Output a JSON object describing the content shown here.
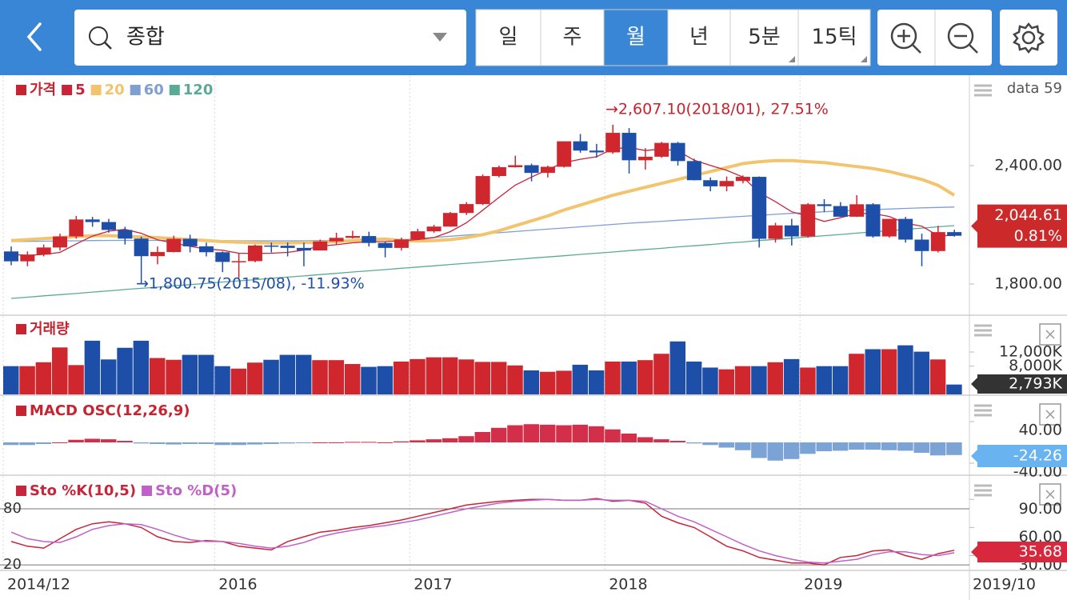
{
  "header": {
    "search": "종합",
    "periods": [
      "일",
      "주",
      "월",
      "년",
      "5분",
      "15틱"
    ],
    "selected_period": 2,
    "data_count": "data 59"
  },
  "chart_data": [
    {
      "type": "candlestick",
      "title": "가격",
      "title_color": "#c8242f",
      "categories": [
        "2014/12",
        null,
        null,
        null,
        null,
        null,
        null,
        null,
        null,
        null,
        null,
        null,
        null,
        "2016",
        null,
        null,
        null,
        null,
        null,
        null,
        null,
        null,
        null,
        null,
        null,
        "2017",
        null,
        null,
        null,
        null,
        null,
        null,
        null,
        null,
        null,
        null,
        null,
        "2018",
        null,
        null,
        null,
        null,
        null,
        null,
        null,
        null,
        null,
        null,
        null,
        "2019",
        null,
        null,
        null,
        null,
        null,
        null,
        null,
        null,
        "2019/10"
      ],
      "open": [
        1965,
        1915,
        1949,
        1985,
        2041,
        2127,
        2114,
        2074,
        2030,
        1941,
        1962,
        2029,
        1991,
        1961,
        1912,
        1916,
        1995,
        1994,
        1983,
        1970,
        2016,
        2034,
        2043,
        2008,
        1983,
        2026,
        2067,
        2091,
        2160,
        2205,
        2347,
        2392,
        2402,
        2363,
        2394,
        2523,
        2476,
        2467,
        2566,
        2427,
        2445,
        2515,
        2423,
        2326,
        2295,
        2322,
        2343,
        2029,
        2097,
        2041,
        2204,
        2195,
        2141,
        2204,
        2041,
        2130,
        2025,
        1967,
        2063
      ],
      "high": [
        1990,
        1965,
        2000,
        2055,
        2145,
        2140,
        2130,
        2090,
        2040,
        1990,
        2045,
        2050,
        2010,
        1965,
        1955,
        2000,
        2010,
        2010,
        2010,
        2025,
        2060,
        2070,
        2065,
        2015,
        2035,
        2080,
        2100,
        2165,
        2215,
        2355,
        2400,
        2450,
        2410,
        2400,
        2523,
        2560,
        2510,
        2607.1,
        2590,
        2488,
        2520,
        2520,
        2435,
        2340,
        2345,
        2350,
        2345,
        2110,
        2130,
        2210,
        2230,
        2215,
        2250,
        2210,
        2130,
        2140,
        2055,
        2095,
        2075
      ],
      "low": [
        1895,
        1890,
        1940,
        1970,
        2030,
        2090,
        2060,
        2000,
        1800.75,
        1900,
        1960,
        1960,
        1940,
        1860,
        1830,
        1910,
        1960,
        1940,
        1890,
        1970,
        2000,
        2030,
        1990,
        1935,
        1970,
        2025,
        2060,
        2090,
        2150,
        2200,
        2340,
        2390,
        2320,
        2340,
        2390,
        2465,
        2440,
        2460,
        2360,
        2380,
        2440,
        2400,
        2325,
        2270,
        2270,
        2310,
        1985,
        2010,
        1995,
        2035,
        2165,
        2140,
        2140,
        2035,
        2035,
        2010,
        1890,
        1960,
        2040
      ],
      "close": [
        1915,
        1949,
        1985,
        2041,
        2127,
        2114,
        2074,
        2030,
        1941,
        1962,
        2029,
        1991,
        1961,
        1912,
        1916,
        1995,
        1994,
        1983,
        1970,
        2016,
        2034,
        2043,
        2008,
        1983,
        2026,
        2067,
        2091,
        2160,
        2205,
        2347,
        2392,
        2402,
        2363,
        2394,
        2523,
        2476,
        2467,
        2566,
        2427,
        2445,
        2515,
        2423,
        2326,
        2295,
        2322,
        2343,
        2029,
        2097,
        2041,
        2204,
        2195,
        2141,
        2204,
        2041,
        2130,
        2025,
        1967,
        2063,
        2044.61
      ],
      "close_label": "2,044.61",
      "change_label": "0.81%",
      "up_color": "#d0262e",
      "down_color": "#1e4fa8",
      "series": [
        {
          "name": "5",
          "color": "#c8243a",
          "values": [
            1950,
            1945,
            1950,
            1960,
            2003,
            2043,
            2068,
            2077,
            2057,
            2024,
            2007,
            1991,
            1977,
            1971,
            1956,
            1955,
            1956,
            1960,
            1972,
            1992,
            1999,
            2009,
            2014,
            2015,
            2019,
            2025,
            2035,
            2065,
            2110,
            2174,
            2239,
            2301,
            2342,
            2380,
            2415,
            2432,
            2445,
            2485,
            2492,
            2476,
            2484,
            2475,
            2427,
            2401,
            2376,
            2342,
            2263,
            2217,
            2166,
            2143,
            2117,
            2136,
            2157,
            2157,
            2142,
            2108,
            2093,
            2045,
            2046
          ]
        },
        {
          "name": "20",
          "color": "#f2c46e",
          "values": [
            2020,
            2025,
            2030,
            2035,
            2040,
            2045,
            2045,
            2042,
            2038,
            2035,
            2030,
            2025,
            2020,
            2015,
            2012,
            2010,
            2008,
            2008,
            2010,
            2012,
            2015,
            2020,
            2025,
            2028,
            2020,
            2018,
            2020,
            2025,
            2035,
            2050,
            2070,
            2095,
            2120,
            2145,
            2175,
            2200,
            2225,
            2250,
            2270,
            2290,
            2310,
            2330,
            2350,
            2370,
            2390,
            2410,
            2420,
            2425,
            2425,
            2420,
            2415,
            2405,
            2395,
            2385,
            2370,
            2350,
            2330,
            2300,
            2250
          ]
        },
        {
          "name": "60",
          "color": "#7d9fd2",
          "values": [
            2015,
            2016,
            2017,
            2018,
            2019,
            2020,
            2021,
            2021,
            2021,
            2021,
            2021,
            2021,
            2020,
            2020,
            2019,
            2019,
            2019,
            2019,
            2019,
            2020,
            2020,
            2021,
            2022,
            2023,
            2024,
            2030,
            2036,
            2042,
            2048,
            2054,
            2060,
            2066,
            2072,
            2078,
            2084,
            2090,
            2096,
            2102,
            2108,
            2113,
            2118,
            2123,
            2128,
            2133,
            2138,
            2143,
            2148,
            2153,
            2158,
            2162,
            2166,
            2170,
            2174,
            2177,
            2180,
            2183,
            2186,
            2188,
            2190
          ]
        },
        {
          "name": "120",
          "color": "#5aab95",
          "values": [
            1727,
            1733,
            1740,
            1746,
            1752,
            1759,
            1765,
            1772,
            1778,
            1784,
            1791,
            1797,
            1803,
            1810,
            1816,
            1822,
            1829,
            1835,
            1841,
            1848,
            1854,
            1861,
            1867,
            1873,
            1880,
            1886,
            1892,
            1899,
            1905,
            1911,
            1918,
            1924,
            1931,
            1937,
            1943,
            1950,
            1956,
            1962,
            1969,
            1975,
            1981,
            1988,
            1994,
            2000,
            2007,
            2013,
            2020,
            2026,
            2032,
            2039,
            2045,
            2051,
            2058,
            2064,
            2070,
            2077,
            2083,
            2090,
            2096
          ]
        }
      ],
      "annotations": [
        {
          "text": "→2,607.10(2018/01), 27.51%",
          "color": "#c8242f"
        },
        {
          "text": "→1,800.75(2015/08), -11.93%",
          "color": "#1f4fa8"
        }
      ],
      "ylim": [
        1646,
        2854
      ],
      "yticks": [
        {
          "value": 2400,
          "label": "2,400.00"
        },
        {
          "value": 1800,
          "label": "1,800.00"
        }
      ]
    },
    {
      "type": "bar",
      "title": "거래량",
      "title_color": "#c8242f",
      "values": [
        8000,
        8000,
        9100,
        13300,
        8300,
        15200,
        9900,
        13200,
        15200,
        10300,
        9800,
        11200,
        11200,
        8000,
        7300,
        9000,
        9800,
        11200,
        11200,
        9700,
        9700,
        8600,
        7800,
        8000,
        9300,
        10000,
        10500,
        10500,
        9900,
        9200,
        9200,
        8200,
        6800,
        6400,
        6700,
        8400,
        6800,
        9300,
        9300,
        9700,
        11500,
        15000,
        9300,
        7600,
        7100,
        8000,
        8000,
        9100,
        10000,
        7600,
        8000,
        8000,
        11500,
        12800,
        12800,
        13900,
        12100,
        9900,
        2793
      ],
      "last_label": "2,793K",
      "ylim": [
        0,
        22200
      ],
      "yticks": [
        {
          "value": 12000,
          "label": "12,000K"
        },
        {
          "value": 8000,
          "label": "8,000K"
        }
      ]
    },
    {
      "type": "bar",
      "title": "MACD OSC(12,26,9)",
      "title_color": "#c8242f",
      "pos_color": "#d42f4a",
      "neg_color": "#7ba3d6",
      "values": [
        -5,
        -5,
        -3,
        0,
        5,
        7,
        6,
        3,
        -2,
        -3,
        -4,
        -3,
        -3,
        -5,
        -5,
        -4,
        -3,
        -2,
        -1,
        0,
        0,
        1,
        1,
        0,
        2,
        4,
        6,
        8,
        12,
        20,
        28,
        33,
        35,
        34,
        33,
        34,
        31,
        25,
        17,
        10,
        6,
        3,
        -2,
        -5,
        -10,
        -15,
        -30,
        -35,
        -32,
        -22,
        -17,
        -16,
        -14,
        -14,
        -15,
        -16,
        -20,
        -25,
        -24.26
      ],
      "last_label": "-24.26",
      "ylim": [
        -61.5,
        89.2
      ],
      "yticks": [
        {
          "value": 40,
          "label": "40.00"
        },
        {
          "value": -40,
          "label": "-40.00"
        }
      ]
    },
    {
      "type": "line",
      "series": [
        {
          "name": "Sto %K(10,5)",
          "color": "#c8243a",
          "values": [
            45,
            40,
            38,
            48,
            58,
            64,
            66,
            64,
            60,
            50,
            45,
            44,
            46,
            45,
            40,
            38,
            36,
            45,
            50,
            55,
            57,
            60,
            62,
            65,
            68,
            72,
            76,
            80,
            84,
            86,
            88,
            89,
            90,
            90,
            89,
            89,
            91,
            88,
            89,
            86,
            72,
            65,
            60,
            50,
            40,
            35,
            28,
            25,
            22,
            22,
            20,
            28,
            30,
            35,
            36,
            30,
            26,
            32,
            35.68
          ]
        },
        {
          "name": "Sto %D(5)",
          "color": "#c060c8",
          "values": [
            55,
            48,
            45,
            44,
            50,
            58,
            62,
            64,
            63,
            58,
            52,
            47,
            45,
            45,
            43,
            40,
            38,
            40,
            44,
            50,
            54,
            57,
            60,
            62,
            65,
            68,
            72,
            76,
            80,
            83,
            86,
            88,
            89,
            90,
            89,
            89,
            90,
            89,
            89,
            88,
            80,
            72,
            66,
            58,
            50,
            42,
            35,
            30,
            26,
            23,
            22,
            24,
            26,
            31,
            34,
            34,
            31,
            30,
            33
          ]
        }
      ],
      "last_label": "35.68",
      "levels": [
        80,
        20
      ],
      "ylim": [
        15,
        115
      ],
      "yticks": [
        {
          "value": 90,
          "label": "90.00"
        },
        {
          "value": 60,
          "label": "60.00"
        },
        {
          "value": 30,
          "label": "30.00"
        }
      ]
    }
  ]
}
